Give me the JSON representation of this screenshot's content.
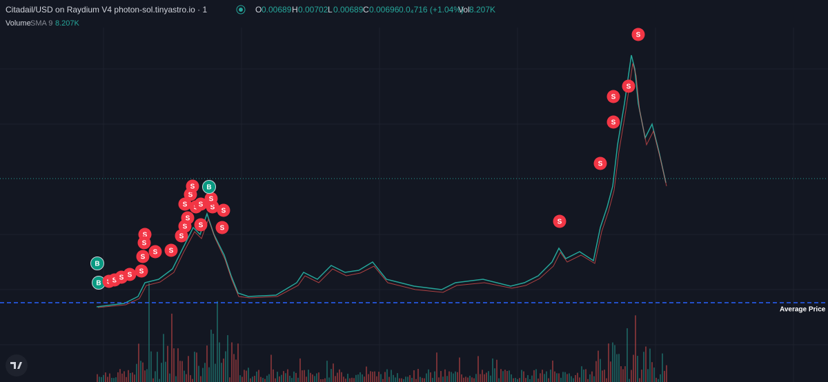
{
  "header": {
    "title": "Citadail/USD on Raydium V4 photon-sol.tinyastro.io · 1",
    "open_label": "O",
    "open": "0.00689",
    "high_label": "H",
    "high": "0.00702",
    "low_label": "L",
    "low": "0.00689",
    "close_label": "C",
    "close": "0.00696",
    "change": "0.0₄716 (+1.04%)",
    "vol_label": "Vol",
    "vol": "8.207K"
  },
  "volume_row": {
    "label": "Volume",
    "indicator": "SMA 9",
    "value": "8.207K"
  },
  "average_line": {
    "label": "Average Price"
  },
  "markers": [
    "B",
    "B",
    "S",
    "S",
    "S",
    "S",
    "S",
    "S",
    "S",
    "S",
    "S",
    "S",
    "S",
    "S",
    "S",
    "S",
    "S",
    "S",
    "S",
    "S",
    "S",
    "S",
    "S",
    "S",
    "S",
    "B",
    "S",
    "S",
    "S",
    "S",
    "S",
    "S"
  ]
}
